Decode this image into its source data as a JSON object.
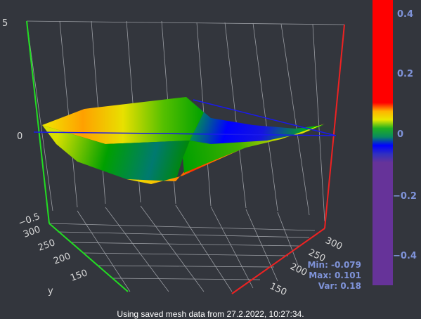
{
  "plot": {
    "z_ticks": [
      "5",
      "0",
      "−0.5"
    ],
    "y_ticks_left": [
      "300",
      "250",
      "200",
      "150"
    ],
    "y_ticks_right": [
      "300",
      "250",
      "200",
      "150"
    ],
    "left_axis_label": "y",
    "colors": {
      "background": "#33363d",
      "grid": "#9a9da3",
      "axis_green": "#22dd22",
      "axis_red": "#ee2222",
      "axis_blue": "#1a1aee"
    }
  },
  "colorbar": {
    "ticks": [
      "0.4",
      "0.2",
      "0",
      "−0.2",
      "−0.4"
    ]
  },
  "stats": {
    "min": "Min: -0.079",
    "max": "Max: 0.101",
    "var": "Var: 0.18"
  },
  "footer": {
    "text": "Using saved mesh data from 27.2.2022, 10:27:34."
  }
}
